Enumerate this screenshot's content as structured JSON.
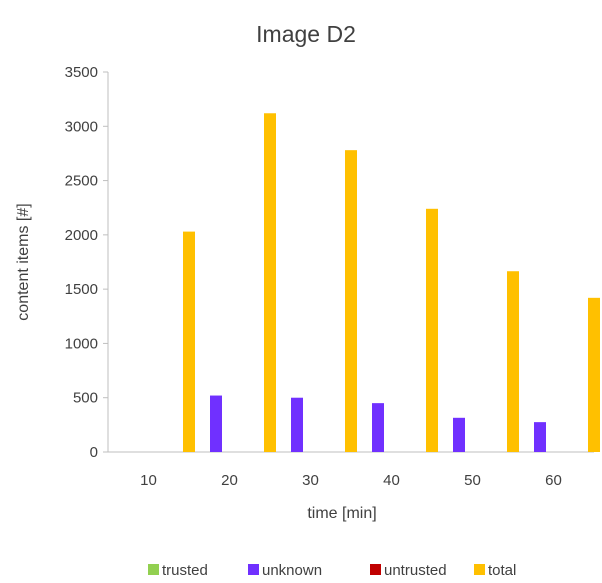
{
  "chart_data": {
    "type": "bar",
    "title": "Image D2",
    "xlabel": "time [min]",
    "ylabel": "content items [#]",
    "categories": [
      "10",
      "20",
      "30",
      "40",
      "50",
      "60"
    ],
    "series": [
      {
        "name": "trusted",
        "color": "#92d050",
        "values": [
          0,
          0,
          0,
          0,
          0,
          0
        ]
      },
      {
        "name": "unknown",
        "color": "#7030ff",
        "values": [
          0,
          520,
          500,
          450,
          315,
          275
        ]
      },
      {
        "name": "untrusted",
        "color": "#c00000",
        "values": [
          0,
          0,
          0,
          0,
          0,
          0
        ]
      },
      {
        "name": "total",
        "color": "#ffc000",
        "values": [
          2030,
          3120,
          2780,
          2240,
          1665,
          1420
        ]
      }
    ],
    "ylim": [
      0,
      3500
    ],
    "yticks": [
      0,
      500,
      1000,
      1500,
      2000,
      2500,
      3000,
      3500
    ],
    "grid": false,
    "legend_position": "bottom"
  }
}
